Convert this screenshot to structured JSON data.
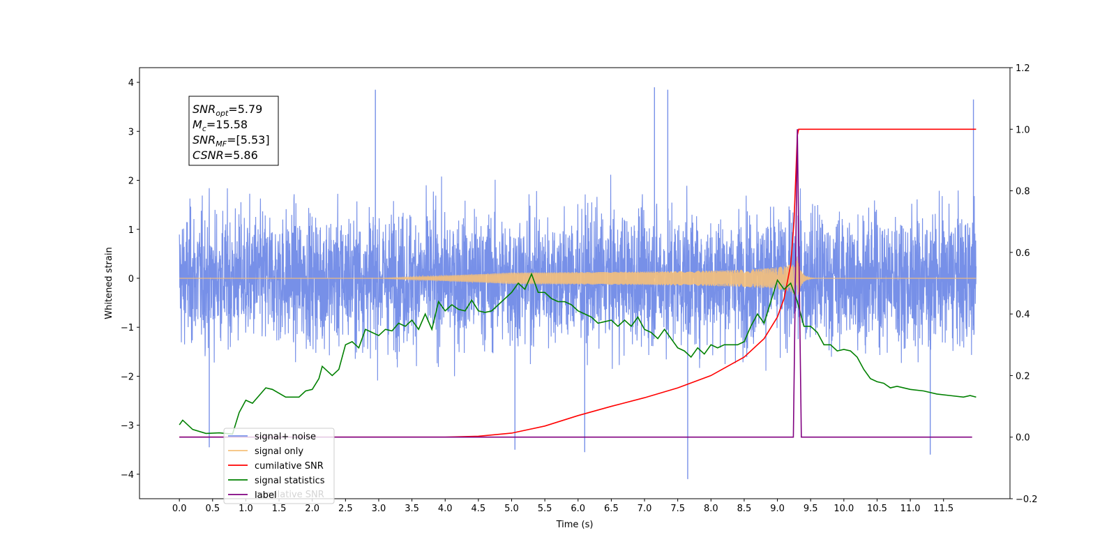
{
  "chart_data": {
    "type": "line",
    "xlabel": "Time (s)",
    "ylabel": "Whitened strain",
    "x_ticks": [
      "0.0",
      "0.5",
      "1.0",
      "1.5",
      "2.0",
      "2.5",
      "3.0",
      "3.5",
      "4.0",
      "4.5",
      "5.0",
      "5.5",
      "6.0",
      "6.5",
      "7.0",
      "7.5",
      "8.0",
      "8.5",
      "9.0",
      "9.5",
      "10.0",
      "10.5",
      "11.0",
      "11.5"
    ],
    "xlim": [
      -0.6,
      12.5
    ],
    "ylim_left": [
      -4.5,
      4.3
    ],
    "ylim_right": [
      -0.2,
      1.2
    ],
    "y_ticks_left": [
      "4",
      "3",
      "2",
      "1",
      "0",
      "−1",
      "−2",
      "−3",
      "−4"
    ],
    "y_ticks_right": [
      "1.2",
      "1.0",
      "0.8",
      "0.6",
      "0.4",
      "0.2",
      "0.0",
      "−0.2"
    ],
    "info_box": {
      "lines": [
        {
          "base": "SNR",
          "sub": "opt",
          "rest": "=5.79"
        },
        {
          "base": "M",
          "sub": "c",
          "rest": "=15.58"
        },
        {
          "base": "SNR",
          "sub": "MF",
          "rest": "=[5.53]"
        },
        {
          "base": "CSNR",
          "sub": "",
          "rest": "=5.86"
        }
      ]
    },
    "legend": {
      "placement": "lower-left",
      "entries": [
        {
          "name": "signal+ noise",
          "color": "#7790e8"
        },
        {
          "name": "signal only",
          "color": "#f5c07a"
        },
        {
          "name": "cumilative SNR",
          "color": "#ff0000"
        },
        {
          "name": "signal statistics",
          "color": "#008000"
        },
        {
          "name": "label",
          "color": "#800080"
        }
      ],
      "ghost_text": "cumilative SNR"
    },
    "series": [
      {
        "name": "signal+ noise",
        "axis": "left",
        "color": "#7790e8",
        "x_range": [
          0.0,
          11.99
        ],
        "typical_amplitude": 1.7,
        "extreme_peaks": [
          {
            "x": 2.95,
            "y": 3.85
          },
          {
            "x": 7.15,
            "y": 3.9
          },
          {
            "x": 7.35,
            "y": 3.85
          },
          {
            "x": 11.95,
            "y": 3.65
          },
          {
            "x": 7.65,
            "y": -4.1
          },
          {
            "x": 11.3,
            "y": -3.6
          },
          {
            "x": 5.05,
            "y": -3.5
          },
          {
            "x": 0.45,
            "y": -3.45
          },
          {
            "x": 6.1,
            "y": -3.55
          }
        ]
      },
      {
        "name": "signal only",
        "axis": "left",
        "color": "#f5c07a",
        "x_range": [
          0.0,
          11.99
        ],
        "chirp_start": 4.5,
        "merger_x": 9.3,
        "peak_amplitude": 0.45
      },
      {
        "name": "cumilative SNR",
        "axis": "right",
        "color": "#ff0000",
        "x": [
          0.0,
          3.0,
          4.0,
          4.5,
          5.0,
          5.5,
          6.0,
          6.5,
          7.0,
          7.5,
          8.0,
          8.5,
          8.8,
          9.0,
          9.1,
          9.2,
          9.25,
          9.3,
          9.32,
          11.99
        ],
        "values": [
          0.0,
          0.0,
          0.0,
          0.003,
          0.013,
          0.036,
          0.07,
          0.1,
          0.128,
          0.16,
          0.2,
          0.26,
          0.32,
          0.39,
          0.45,
          0.56,
          0.7,
          0.98,
          1.0,
          1.0
        ]
      },
      {
        "name": "signal statistics",
        "axis": "right",
        "color": "#008000",
        "x": [
          0.0,
          0.05,
          0.2,
          0.4,
          0.6,
          0.8,
          0.9,
          1.0,
          1.1,
          1.3,
          1.4,
          1.6,
          1.8,
          1.9,
          2.0,
          2.1,
          2.15,
          2.3,
          2.4,
          2.5,
          2.6,
          2.7,
          2.8,
          2.9,
          3.0,
          3.1,
          3.2,
          3.3,
          3.4,
          3.5,
          3.6,
          3.7,
          3.8,
          3.9,
          4.0,
          4.1,
          4.2,
          4.3,
          4.4,
          4.5,
          4.6,
          4.7,
          4.8,
          4.9,
          5.0,
          5.1,
          5.2,
          5.3,
          5.4,
          5.5,
          5.6,
          5.7,
          5.8,
          5.9,
          6.0,
          6.1,
          6.2,
          6.3,
          6.4,
          6.5,
          6.6,
          6.7,
          6.8,
          6.9,
          7.0,
          7.1,
          7.2,
          7.3,
          7.4,
          7.5,
          7.6,
          7.7,
          7.8,
          7.9,
          8.0,
          8.1,
          8.2,
          8.3,
          8.4,
          8.5,
          8.6,
          8.7,
          8.8,
          8.9,
          9.0,
          9.1,
          9.2,
          9.3,
          9.4,
          9.5,
          9.6,
          9.7,
          9.8,
          9.9,
          10.0,
          10.1,
          10.2,
          10.3,
          10.4,
          10.5,
          10.6,
          10.7,
          10.8,
          10.9,
          11.0,
          11.2,
          11.4,
          11.6,
          11.8,
          11.9,
          11.99
        ],
        "values": [
          0.04,
          0.055,
          0.025,
          0.012,
          0.014,
          0.01,
          0.08,
          0.12,
          0.11,
          0.16,
          0.155,
          0.13,
          0.13,
          0.15,
          0.155,
          0.19,
          0.23,
          0.2,
          0.22,
          0.3,
          0.31,
          0.29,
          0.35,
          0.34,
          0.33,
          0.35,
          0.345,
          0.37,
          0.36,
          0.38,
          0.35,
          0.4,
          0.35,
          0.44,
          0.41,
          0.43,
          0.415,
          0.41,
          0.445,
          0.41,
          0.405,
          0.41,
          0.43,
          0.45,
          0.47,
          0.5,
          0.48,
          0.53,
          0.47,
          0.47,
          0.45,
          0.44,
          0.44,
          0.43,
          0.41,
          0.4,
          0.39,
          0.37,
          0.375,
          0.38,
          0.36,
          0.38,
          0.36,
          0.39,
          0.35,
          0.34,
          0.32,
          0.35,
          0.32,
          0.29,
          0.28,
          0.26,
          0.29,
          0.27,
          0.3,
          0.29,
          0.3,
          0.3,
          0.3,
          0.31,
          0.36,
          0.4,
          0.37,
          0.44,
          0.51,
          0.48,
          0.5,
          0.44,
          0.36,
          0.36,
          0.34,
          0.3,
          0.3,
          0.28,
          0.285,
          0.28,
          0.26,
          0.22,
          0.19,
          0.18,
          0.175,
          0.16,
          0.165,
          0.16,
          0.155,
          0.15,
          0.14,
          0.135,
          0.13,
          0.135,
          0.13
        ]
      },
      {
        "name": "label",
        "axis": "right",
        "color": "#800080",
        "x": [
          0.0,
          9.24,
          9.3,
          9.36,
          11.93
        ],
        "values": [
          0.0,
          0.0,
          1.0,
          0.0,
          0.0
        ]
      }
    ]
  }
}
